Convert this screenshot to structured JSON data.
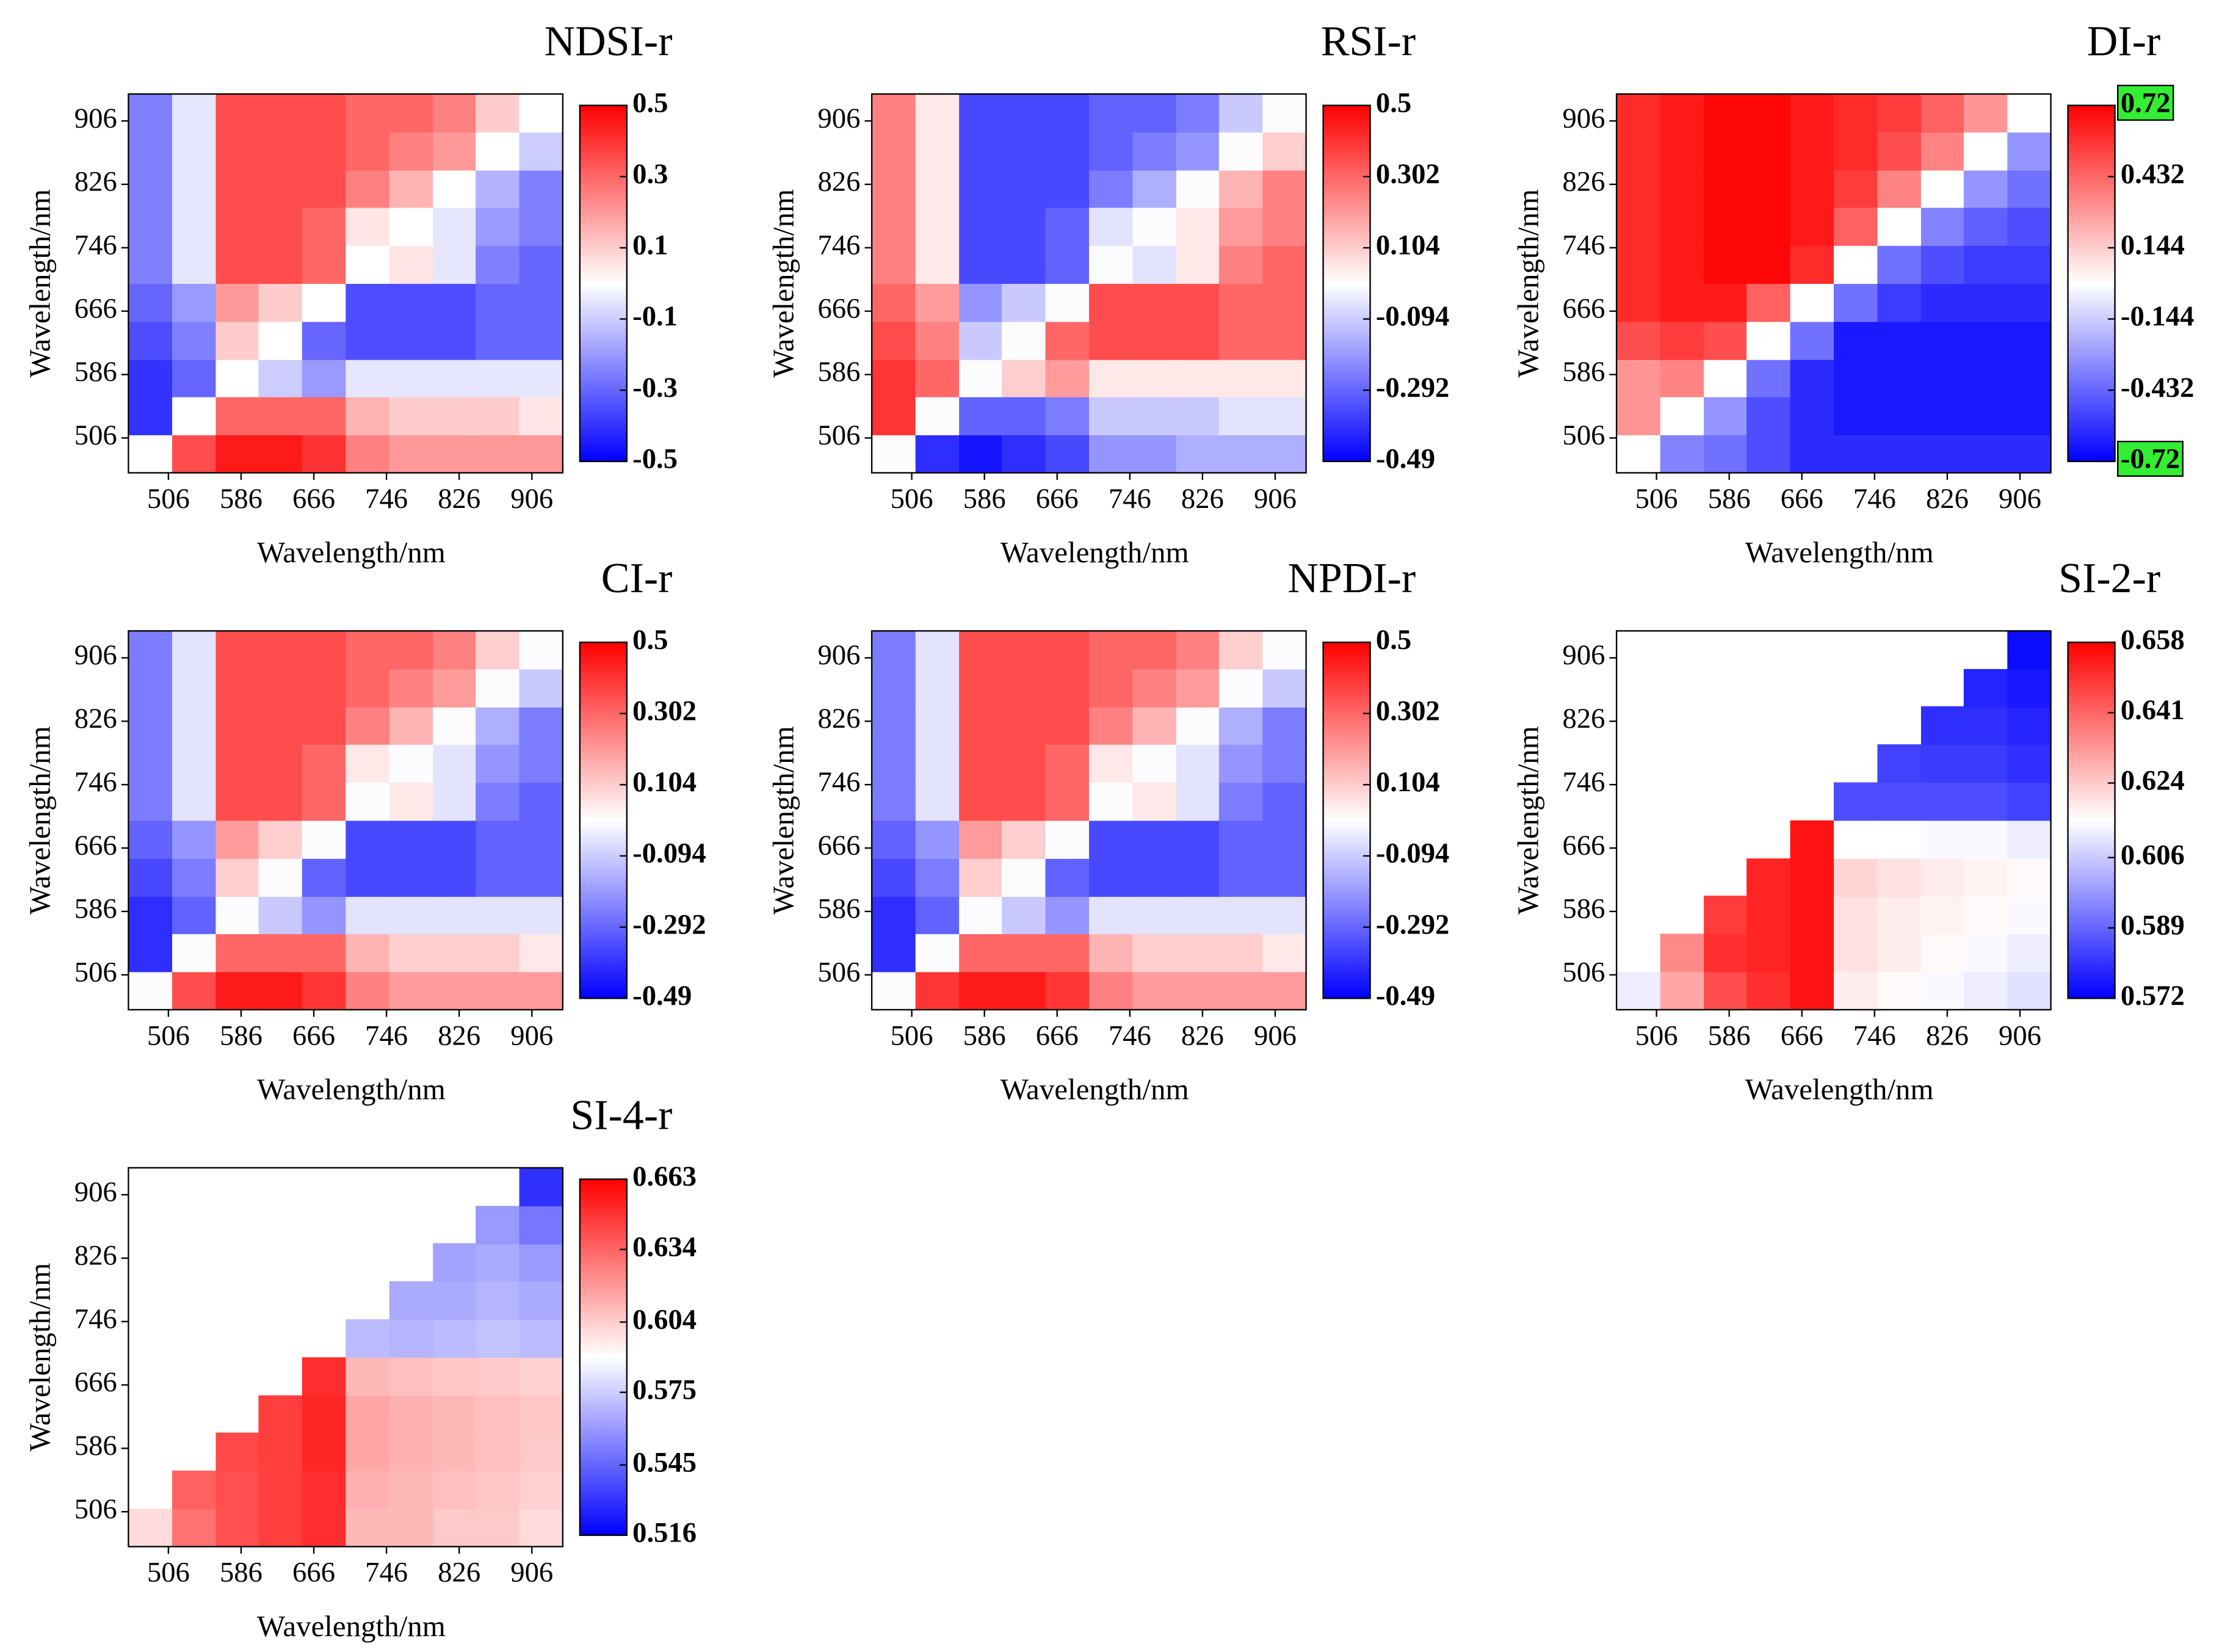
{
  "chart_data": [
    {
      "type": "heatmap",
      "title": "NDSI-r",
      "xlabel": "Wavelength/nm",
      "ylabel": "Wavelength/nm",
      "x": [
        486,
        534,
        582,
        629,
        677,
        725,
        773,
        821,
        868,
        916
      ],
      "y": [
        486,
        534,
        582,
        629,
        677,
        725,
        773,
        821,
        868,
        916
      ],
      "xlim": [
        462,
        940
      ],
      "ylim": [
        462,
        940
      ],
      "xticks": [
        506,
        586,
        666,
        746,
        826,
        906
      ],
      "yticks": [
        506,
        586,
        666,
        746,
        826,
        906
      ],
      "zlim": [
        -0.5,
        0.5
      ],
      "cticks": [
        0.5,
        0.3,
        0.1,
        -0.1,
        -0.3,
        -0.5
      ],
      "colormap": [
        "#0000ff",
        "#ffffff",
        "#ff0000"
      ],
      "z": [
        [
          0,
          0.35,
          0.45,
          0.45,
          0.4,
          0.25,
          0.2,
          0.2,
          0.2,
          0.2
        ],
        [
          -0.4,
          0,
          0.3,
          0.3,
          0.3,
          0.15,
          0.1,
          0.1,
          0.1,
          0.05
        ],
        [
          -0.4,
          -0.3,
          0,
          -0.1,
          -0.2,
          -0.05,
          -0.05,
          -0.05,
          -0.05,
          -0.05
        ],
        [
          -0.35,
          -0.25,
          0.1,
          0,
          -0.3,
          -0.35,
          -0.35,
          -0.35,
          -0.3,
          -0.3
        ],
        [
          -0.3,
          -0.2,
          0.2,
          0.1,
          0,
          -0.35,
          -0.35,
          -0.35,
          -0.3,
          -0.3
        ],
        [
          -0.25,
          -0.05,
          0.35,
          0.35,
          0.3,
          0,
          0.05,
          -0.05,
          -0.25,
          -0.3
        ],
        [
          -0.25,
          -0.05,
          0.35,
          0.35,
          0.3,
          0.05,
          0,
          -0.05,
          -0.2,
          -0.25
        ],
        [
          -0.25,
          -0.05,
          0.35,
          0.35,
          0.35,
          0.25,
          0.15,
          0,
          -0.15,
          -0.25
        ],
        [
          -0.25,
          -0.05,
          0.35,
          0.35,
          0.35,
          0.3,
          0.25,
          0.2,
          0,
          -0.1
        ],
        [
          -0.25,
          -0.05,
          0.35,
          0.35,
          0.35,
          0.3,
          0.3,
          0.25,
          0.1,
          0
        ]
      ]
    },
    {
      "type": "heatmap",
      "title": "RSI-r",
      "xlabel": "Wavelength/nm",
      "ylabel": "Wavelength/nm",
      "x": [
        486,
        534,
        582,
        629,
        677,
        725,
        773,
        821,
        868,
        916
      ],
      "y": [
        486,
        534,
        582,
        629,
        677,
        725,
        773,
        821,
        868,
        916
      ],
      "xlim": [
        462,
        940
      ],
      "ylim": [
        462,
        940
      ],
      "xticks": [
        506,
        586,
        666,
        746,
        826,
        906
      ],
      "yticks": [
        506,
        586,
        666,
        746,
        826,
        906
      ],
      "zlim": [
        -0.49,
        0.5
      ],
      "cticks": [
        0.5,
        0.302,
        0.104,
        -0.094,
        -0.292,
        -0.49
      ],
      "colormap": [
        "#0000ff",
        "#ffffff",
        "#ff0000"
      ],
      "z": [
        [
          0,
          -0.4,
          -0.45,
          -0.4,
          -0.35,
          -0.2,
          -0.2,
          -0.15,
          -0.15,
          -0.15
        ],
        [
          0.4,
          0,
          -0.3,
          -0.3,
          -0.25,
          -0.1,
          -0.1,
          -0.1,
          -0.05,
          -0.05
        ],
        [
          0.4,
          0.3,
          0,
          0.1,
          0.2,
          0.05,
          0.05,
          0.05,
          0.05,
          0.05
        ],
        [
          0.35,
          0.25,
          -0.1,
          0,
          0.3,
          0.35,
          0.35,
          0.35,
          0.3,
          0.3
        ],
        [
          0.3,
          0.2,
          -0.2,
          -0.1,
          0,
          0.35,
          0.35,
          0.35,
          0.3,
          0.3
        ],
        [
          0.25,
          0.05,
          -0.35,
          -0.35,
          -0.3,
          0,
          -0.05,
          0.05,
          0.25,
          0.3
        ],
        [
          0.25,
          0.05,
          -0.35,
          -0.35,
          -0.3,
          -0.05,
          0,
          0.05,
          0.2,
          0.25
        ],
        [
          0.25,
          0.05,
          -0.35,
          -0.35,
          -0.35,
          -0.25,
          -0.15,
          0,
          0.15,
          0.25
        ],
        [
          0.25,
          0.05,
          -0.35,
          -0.35,
          -0.35,
          -0.3,
          -0.25,
          -0.2,
          0,
          0.1
        ],
        [
          0.25,
          0.05,
          -0.35,
          -0.35,
          -0.35,
          -0.3,
          -0.3,
          -0.25,
          -0.1,
          0
        ]
      ]
    },
    {
      "type": "heatmap",
      "title": "DI-r",
      "xlabel": "Wavelength/nm",
      "ylabel": "Wavelength/nm",
      "x": [
        486,
        534,
        582,
        629,
        677,
        725,
        773,
        821,
        868,
        916
      ],
      "y": [
        486,
        534,
        582,
        629,
        677,
        725,
        773,
        821,
        868,
        916
      ],
      "xlim": [
        462,
        940
      ],
      "ylim": [
        462,
        940
      ],
      "xticks": [
        506,
        586,
        666,
        746,
        826,
        906
      ],
      "yticks": [
        506,
        586,
        666,
        746,
        826,
        906
      ],
      "zlim": [
        -0.72,
        0.72
      ],
      "cticks": [
        0.72,
        0.432,
        0.144,
        -0.144,
        -0.432,
        -0.72
      ],
      "colormap": [
        "#0000ff",
        "#ffffff",
        "#ff0000"
      ],
      "highlight_ticks": [
        0,
        5
      ],
      "highlight_color": "#33ee33",
      "z": [
        [
          0,
          -0.35,
          -0.4,
          -0.5,
          -0.6,
          -0.6,
          -0.6,
          -0.6,
          -0.6,
          -0.6
        ],
        [
          0.3,
          0,
          -0.3,
          -0.5,
          -0.6,
          -0.65,
          -0.65,
          -0.65,
          -0.65,
          -0.65
        ],
        [
          0.3,
          0.35,
          0,
          -0.4,
          -0.6,
          -0.65,
          -0.65,
          -0.65,
          -0.65,
          -0.65
        ],
        [
          0.5,
          0.55,
          0.5,
          0,
          -0.4,
          -0.65,
          -0.65,
          -0.65,
          -0.65,
          -0.65
        ],
        [
          0.6,
          0.65,
          0.65,
          0.45,
          0,
          -0.4,
          -0.55,
          -0.6,
          -0.6,
          -0.6
        ],
        [
          0.6,
          0.65,
          0.7,
          0.7,
          0.6,
          0,
          -0.4,
          -0.5,
          -0.55,
          -0.55
        ],
        [
          0.6,
          0.65,
          0.7,
          0.7,
          0.65,
          0.45,
          0,
          -0.35,
          -0.45,
          -0.5
        ],
        [
          0.6,
          0.65,
          0.7,
          0.7,
          0.65,
          0.55,
          0.35,
          0,
          -0.3,
          -0.4
        ],
        [
          0.6,
          0.65,
          0.7,
          0.7,
          0.65,
          0.6,
          0.5,
          0.35,
          0,
          -0.3
        ],
        [
          0.6,
          0.65,
          0.7,
          0.7,
          0.65,
          0.6,
          0.55,
          0.45,
          0.3,
          0
        ]
      ]
    },
    {
      "type": "heatmap",
      "title": "CI-r",
      "xlabel": "Wavelength/nm",
      "ylabel": "Wavelength/nm",
      "x": [
        486,
        534,
        582,
        629,
        677,
        725,
        773,
        821,
        868,
        916
      ],
      "y": [
        486,
        534,
        582,
        629,
        677,
        725,
        773,
        821,
        868,
        916
      ],
      "xlim": [
        462,
        940
      ],
      "ylim": [
        462,
        940
      ],
      "xticks": [
        506,
        586,
        666,
        746,
        826,
        906
      ],
      "yticks": [
        506,
        586,
        666,
        746,
        826,
        906
      ],
      "zlim": [
        -0.49,
        0.5
      ],
      "cticks": [
        0.5,
        0.302,
        0.104,
        -0.094,
        -0.292,
        -0.49
      ],
      "colormap": [
        "#0000ff",
        "#ffffff",
        "#ff0000"
      ],
      "z": [
        [
          0,
          0.35,
          0.45,
          0.45,
          0.4,
          0.25,
          0.2,
          0.2,
          0.2,
          0.2
        ],
        [
          -0.4,
          0,
          0.3,
          0.3,
          0.3,
          0.15,
          0.1,
          0.1,
          0.1,
          0.05
        ],
        [
          -0.4,
          -0.3,
          0,
          -0.1,
          -0.2,
          -0.05,
          -0.05,
          -0.05,
          -0.05,
          -0.05
        ],
        [
          -0.35,
          -0.25,
          0.1,
          0,
          -0.3,
          -0.35,
          -0.35,
          -0.35,
          -0.3,
          -0.3
        ],
        [
          -0.3,
          -0.2,
          0.2,
          0.1,
          0,
          -0.35,
          -0.35,
          -0.35,
          -0.3,
          -0.3
        ],
        [
          -0.25,
          -0.05,
          0.35,
          0.35,
          0.3,
          0,
          0.05,
          -0.05,
          -0.25,
          -0.3
        ],
        [
          -0.25,
          -0.05,
          0.35,
          0.35,
          0.3,
          0.05,
          0,
          -0.05,
          -0.2,
          -0.25
        ],
        [
          -0.25,
          -0.05,
          0.35,
          0.35,
          0.35,
          0.25,
          0.15,
          0,
          -0.15,
          -0.25
        ],
        [
          -0.25,
          -0.05,
          0.35,
          0.35,
          0.35,
          0.3,
          0.25,
          0.2,
          0,
          -0.1
        ],
        [
          -0.25,
          -0.05,
          0.35,
          0.35,
          0.35,
          0.3,
          0.3,
          0.25,
          0.1,
          0
        ]
      ]
    },
    {
      "type": "heatmap",
      "title": "NPDI-r",
      "xlabel": "Wavelength/nm",
      "ylabel": "Wavelength/nm",
      "x": [
        486,
        534,
        582,
        629,
        677,
        725,
        773,
        821,
        868,
        916
      ],
      "y": [
        486,
        534,
        582,
        629,
        677,
        725,
        773,
        821,
        868,
        916
      ],
      "xlim": [
        462,
        940
      ],
      "ylim": [
        462,
        940
      ],
      "xticks": [
        506,
        586,
        666,
        746,
        826,
        906
      ],
      "yticks": [
        506,
        586,
        666,
        746,
        826,
        906
      ],
      "zlim": [
        -0.49,
        0.5
      ],
      "cticks": [
        0.5,
        0.302,
        0.104,
        -0.094,
        -0.292,
        -0.49
      ],
      "colormap": [
        "#0000ff",
        "#ffffff",
        "#ff0000"
      ],
      "z": [
        [
          0,
          0.4,
          0.45,
          0.45,
          0.4,
          0.25,
          0.2,
          0.2,
          0.2,
          0.2
        ],
        [
          -0.4,
          0,
          0.3,
          0.3,
          0.3,
          0.15,
          0.1,
          0.1,
          0.1,
          0.05
        ],
        [
          -0.4,
          -0.3,
          0,
          -0.1,
          -0.2,
          -0.05,
          -0.05,
          -0.05,
          -0.05,
          -0.05
        ],
        [
          -0.35,
          -0.25,
          0.1,
          0,
          -0.3,
          -0.35,
          -0.35,
          -0.35,
          -0.3,
          -0.3
        ],
        [
          -0.3,
          -0.2,
          0.2,
          0.1,
          0,
          -0.35,
          -0.35,
          -0.35,
          -0.3,
          -0.3
        ],
        [
          -0.25,
          -0.05,
          0.35,
          0.35,
          0.3,
          0,
          0.05,
          -0.05,
          -0.25,
          -0.3
        ],
        [
          -0.25,
          -0.05,
          0.35,
          0.35,
          0.3,
          0.05,
          0,
          -0.05,
          -0.2,
          -0.25
        ],
        [
          -0.25,
          -0.05,
          0.35,
          0.35,
          0.35,
          0.25,
          0.15,
          0,
          -0.15,
          -0.25
        ],
        [
          -0.25,
          -0.05,
          0.35,
          0.35,
          0.35,
          0.3,
          0.25,
          0.2,
          0,
          -0.1
        ],
        [
          -0.25,
          -0.05,
          0.35,
          0.35,
          0.35,
          0.3,
          0.3,
          0.25,
          0.1,
          0
        ]
      ]
    },
    {
      "type": "heatmap",
      "title": "SI-2-r",
      "xlabel": "Wavelength/nm",
      "ylabel": "Wavelength/nm",
      "x": [
        486,
        534,
        582,
        629,
        677,
        725,
        773,
        821,
        868,
        916
      ],
      "y": [
        486,
        534,
        582,
        629,
        677,
        725,
        773,
        821,
        868,
        916
      ],
      "xlim": [
        462,
        940
      ],
      "ylim": [
        462,
        940
      ],
      "xticks": [
        506,
        586,
        666,
        746,
        826,
        906
      ],
      "yticks": [
        506,
        586,
        666,
        746,
        826,
        906
      ],
      "zlim": [
        0.572,
        0.658
      ],
      "cticks": [
        0.658,
        0.641,
        0.624,
        0.606,
        0.589,
        0.572
      ],
      "colormap": [
        "#0000ff",
        "#ffffff",
        "#ff0000"
      ],
      "z": [
        [
          0.612,
          0.63,
          0.645,
          0.65,
          0.655,
          0.618,
          0.616,
          0.614,
          0.612,
          0.61
        ],
        [
          null,
          0.635,
          0.65,
          0.652,
          0.655,
          0.62,
          0.618,
          0.616,
          0.614,
          0.612
        ],
        [
          null,
          null,
          0.648,
          0.652,
          0.655,
          0.62,
          0.618,
          0.617,
          0.616,
          0.614
        ],
        [
          null,
          null,
          null,
          0.652,
          0.655,
          0.622,
          0.62,
          0.618,
          0.617,
          0.616
        ],
        [
          null,
          null,
          null,
          null,
          0.655,
          0.615,
          0.615,
          0.614,
          0.614,
          0.612
        ],
        [
          null,
          null,
          null,
          null,
          null,
          0.585,
          0.585,
          0.585,
          0.585,
          0.583
        ],
        [
          null,
          null,
          null,
          null,
          null,
          null,
          0.583,
          0.582,
          0.582,
          0.58
        ],
        [
          null,
          null,
          null,
          null,
          null,
          null,
          null,
          0.58,
          0.58,
          0.578
        ],
        [
          null,
          null,
          null,
          null,
          null,
          null,
          null,
          null,
          0.578,
          0.576
        ],
        [
          null,
          null,
          null,
          null,
          null,
          null,
          null,
          null,
          null,
          0.574
        ]
      ]
    },
    {
      "type": "heatmap",
      "title": "SI-4-r",
      "xlabel": "Wavelength/nm",
      "ylabel": "Wavelength/nm",
      "x": [
        486,
        534,
        582,
        629,
        677,
        725,
        773,
        821,
        868,
        916
      ],
      "y": [
        486,
        534,
        582,
        629,
        677,
        725,
        773,
        821,
        868,
        916
      ],
      "xlim": [
        462,
        940
      ],
      "ylim": [
        462,
        940
      ],
      "xticks": [
        506,
        586,
        666,
        746,
        826,
        906
      ],
      "yticks": [
        506,
        586,
        666,
        746,
        826,
        906
      ],
      "zlim": [
        0.516,
        0.663
      ],
      "cticks": [
        0.663,
        0.634,
        0.604,
        0.575,
        0.545,
        0.516
      ],
      "colormap": [
        "#0000ff",
        "#ffffff",
        "#ff0000"
      ],
      "z": [
        [
          0.6,
          0.63,
          0.64,
          0.645,
          0.65,
          0.61,
          0.61,
          0.605,
          0.605,
          0.6
        ],
        [
          null,
          0.635,
          0.64,
          0.645,
          0.65,
          0.612,
          0.61,
          0.608,
          0.606,
          0.603
        ],
        [
          null,
          null,
          0.642,
          0.645,
          0.652,
          0.615,
          0.612,
          0.61,
          0.608,
          0.605
        ],
        [
          null,
          null,
          null,
          0.645,
          0.652,
          0.615,
          0.612,
          0.61,
          0.608,
          0.606
        ],
        [
          null,
          null,
          null,
          null,
          0.65,
          0.61,
          0.608,
          0.606,
          0.605,
          0.603
        ],
        [
          null,
          null,
          null,
          null,
          null,
          0.57,
          0.568,
          0.57,
          0.572,
          0.57
        ],
        [
          null,
          null,
          null,
          null,
          null,
          null,
          0.565,
          0.565,
          0.568,
          0.565
        ],
        [
          null,
          null,
          null,
          null,
          null,
          null,
          null,
          0.563,
          0.565,
          0.56
        ],
        [
          null,
          null,
          null,
          null,
          null,
          null,
          null,
          null,
          0.56,
          0.55
        ],
        [
          null,
          null,
          null,
          null,
          null,
          null,
          null,
          null,
          null,
          0.53
        ]
      ]
    }
  ]
}
